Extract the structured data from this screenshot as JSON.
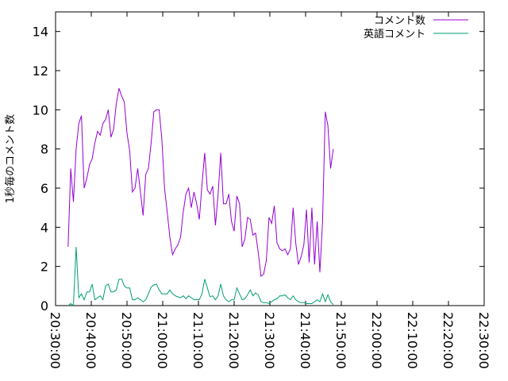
{
  "chart_data": {
    "type": "line",
    "title": "",
    "xlabel": "",
    "ylabel": "1秒毎のコメント数",
    "xlim": [
      "20:30:00",
      "22:30:00"
    ],
    "ylim": [
      0,
      15
    ],
    "x_ticks": [
      "20:30:00",
      "20:40:00",
      "20:50:00",
      "21:00:00",
      "21:10:00",
      "21:20:00",
      "21:30:00",
      "21:40:00",
      "21:50:00",
      "22:00:00",
      "22:10:00",
      "22:20:00",
      "22:30:00"
    ],
    "y_ticks": [
      0,
      2,
      4,
      6,
      8,
      10,
      12,
      14
    ],
    "grid": false,
    "legend_position": "top-right",
    "series": [
      {
        "name": "コメント数",
        "color": "#9400d3",
        "points": [
          [
            "20:33:30",
            3.0
          ],
          [
            "20:34:15",
            7.0
          ],
          [
            "20:35:00",
            5.3
          ],
          [
            "20:35:45",
            8.0
          ],
          [
            "20:36:30",
            9.3
          ],
          [
            "20:37:15",
            9.7
          ],
          [
            "20:38:00",
            6.0
          ],
          [
            "20:38:45",
            6.5
          ],
          [
            "20:39:30",
            7.2
          ],
          [
            "20:40:15",
            7.5
          ],
          [
            "20:41:00",
            8.3
          ],
          [
            "20:41:45",
            8.9
          ],
          [
            "20:42:30",
            8.7
          ],
          [
            "20:43:15",
            9.3
          ],
          [
            "20:44:00",
            9.5
          ],
          [
            "20:44:45",
            10.0
          ],
          [
            "20:45:30",
            8.6
          ],
          [
            "20:46:15",
            9.0
          ],
          [
            "20:47:00",
            10.3
          ],
          [
            "20:47:45",
            11.1
          ],
          [
            "20:48:30",
            10.7
          ],
          [
            "20:49:15",
            10.4
          ],
          [
            "20:50:00",
            8.8
          ],
          [
            "20:50:45",
            7.9
          ],
          [
            "20:51:30",
            5.8
          ],
          [
            "20:52:15",
            6.0
          ],
          [
            "20:53:00",
            7.0
          ],
          [
            "20:53:45",
            5.8
          ],
          [
            "20:54:30",
            4.6
          ],
          [
            "20:55:15",
            6.7
          ],
          [
            "20:56:00",
            7.0
          ],
          [
            "20:56:45",
            8.3
          ],
          [
            "20:57:30",
            9.9
          ],
          [
            "20:58:15",
            10.0
          ],
          [
            "20:59:00",
            10.0
          ],
          [
            "20:59:45",
            8.5
          ],
          [
            "21:00:30",
            6.0
          ],
          [
            "21:01:15",
            4.8
          ],
          [
            "21:02:00",
            3.5
          ],
          [
            "21:02:45",
            2.6
          ],
          [
            "21:03:30",
            2.9
          ],
          [
            "21:04:15",
            3.1
          ],
          [
            "21:05:00",
            3.5
          ],
          [
            "21:05:45",
            4.8
          ],
          [
            "21:06:30",
            5.7
          ],
          [
            "21:07:15",
            6.0
          ],
          [
            "21:08:00",
            5.0
          ],
          [
            "21:08:45",
            5.8
          ],
          [
            "21:09:30",
            5.2
          ],
          [
            "21:10:15",
            4.4
          ],
          [
            "21:11:00",
            6.2
          ],
          [
            "21:11:45",
            7.8
          ],
          [
            "21:12:30",
            5.9
          ],
          [
            "21:13:15",
            5.7
          ],
          [
            "21:14:00",
            6.1
          ],
          [
            "21:14:45",
            4.1
          ],
          [
            "21:15:30",
            5.7
          ],
          [
            "21:16:15",
            7.8
          ],
          [
            "21:17:00",
            5.2
          ],
          [
            "21:17:45",
            5.2
          ],
          [
            "21:18:30",
            5.7
          ],
          [
            "21:19:15",
            4.3
          ],
          [
            "21:20:00",
            3.8
          ],
          [
            "21:20:45",
            5.6
          ],
          [
            "21:21:30",
            5.2
          ],
          [
            "21:22:15",
            3.0
          ],
          [
            "21:23:00",
            3.4
          ],
          [
            "21:23:45",
            4.5
          ],
          [
            "21:24:30",
            4.4
          ],
          [
            "21:25:15",
            3.6
          ],
          [
            "21:26:00",
            3.7
          ],
          [
            "21:26:45",
            2.7
          ],
          [
            "21:27:30",
            1.5
          ],
          [
            "21:28:15",
            1.6
          ],
          [
            "21:29:00",
            2.3
          ],
          [
            "21:29:45",
            4.5
          ],
          [
            "21:30:30",
            4.2
          ],
          [
            "21:31:15",
            5.1
          ],
          [
            "21:32:00",
            3.2
          ],
          [
            "21:32:45",
            2.9
          ],
          [
            "21:33:30",
            2.8
          ],
          [
            "21:34:15",
            2.9
          ],
          [
            "21:35:00",
            2.6
          ],
          [
            "21:35:45",
            2.9
          ],
          [
            "21:36:30",
            5.0
          ],
          [
            "21:37:15",
            3.2
          ],
          [
            "21:38:00",
            2.1
          ],
          [
            "21:38:45",
            2.5
          ],
          [
            "21:39:30",
            3.1
          ],
          [
            "21:40:15",
            4.9
          ],
          [
            "21:41:00",
            2.2
          ],
          [
            "21:41:45",
            5.0
          ],
          [
            "21:42:30",
            2.1
          ],
          [
            "21:43:15",
            4.3
          ],
          [
            "21:44:00",
            1.7
          ],
          [
            "21:44:45",
            4.3
          ],
          [
            "21:45:30",
            9.9
          ],
          [
            "21:46:15",
            9.2
          ],
          [
            "21:47:00",
            7.0
          ],
          [
            "21:47:45",
            8.0
          ]
        ]
      },
      {
        "name": "英語コメント",
        "color": "#009e73",
        "points": [
          [
            "20:33:30",
            0.0
          ],
          [
            "20:34:15",
            0.1
          ],
          [
            "20:35:00",
            0.0
          ],
          [
            "20:35:45",
            3.0
          ],
          [
            "20:36:30",
            0.4
          ],
          [
            "20:37:15",
            0.6
          ],
          [
            "20:38:00",
            0.3
          ],
          [
            "20:38:45",
            0.7
          ],
          [
            "20:39:30",
            0.7
          ],
          [
            "20:40:15",
            1.1
          ],
          [
            "20:41:00",
            0.3
          ],
          [
            "20:41:45",
            0.4
          ],
          [
            "20:42:30",
            0.5
          ],
          [
            "20:43:15",
            0.3
          ],
          [
            "20:44:00",
            1.0
          ],
          [
            "20:44:45",
            1.1
          ],
          [
            "20:45:30",
            0.7
          ],
          [
            "20:46:15",
            0.7
          ],
          [
            "20:47:00",
            0.8
          ],
          [
            "20:47:45",
            1.35
          ],
          [
            "20:48:30",
            1.35
          ],
          [
            "20:49:15",
            1.0
          ],
          [
            "20:50:00",
            0.9
          ],
          [
            "20:50:45",
            0.9
          ],
          [
            "20:51:30",
            0.3
          ],
          [
            "20:52:15",
            0.3
          ],
          [
            "20:53:00",
            0.4
          ],
          [
            "20:53:45",
            0.3
          ],
          [
            "20:54:30",
            0.2
          ],
          [
            "20:55:15",
            0.3
          ],
          [
            "20:56:00",
            0.6
          ],
          [
            "20:56:45",
            0.95
          ],
          [
            "20:57:30",
            1.05
          ],
          [
            "20:58:15",
            1.1
          ],
          [
            "20:59:00",
            0.8
          ],
          [
            "20:59:45",
            0.6
          ],
          [
            "21:00:30",
            0.6
          ],
          [
            "21:01:15",
            0.6
          ],
          [
            "21:02:00",
            0.8
          ],
          [
            "21:02:45",
            0.6
          ],
          [
            "21:03:30",
            0.5
          ],
          [
            "21:04:15",
            0.45
          ],
          [
            "21:05:00",
            0.4
          ],
          [
            "21:05:45",
            0.5
          ],
          [
            "21:06:30",
            0.35
          ],
          [
            "21:07:15",
            0.5
          ],
          [
            "21:08:00",
            0.4
          ],
          [
            "21:08:45",
            0.3
          ],
          [
            "21:09:30",
            0.3
          ],
          [
            "21:10:15",
            0.3
          ],
          [
            "21:11:00",
            0.6
          ],
          [
            "21:11:45",
            1.35
          ],
          [
            "21:12:30",
            0.9
          ],
          [
            "21:13:15",
            0.45
          ],
          [
            "21:14:00",
            0.5
          ],
          [
            "21:14:45",
            0.3
          ],
          [
            "21:15:30",
            0.5
          ],
          [
            "21:16:15",
            1.1
          ],
          [
            "21:17:00",
            0.5
          ],
          [
            "21:17:45",
            0.3
          ],
          [
            "21:18:30",
            0.2
          ],
          [
            "21:19:15",
            0.3
          ],
          [
            "21:20:00",
            0.3
          ],
          [
            "21:20:45",
            0.9
          ],
          [
            "21:21:30",
            0.6
          ],
          [
            "21:22:15",
            0.3
          ],
          [
            "21:23:00",
            0.35
          ],
          [
            "21:23:45",
            0.55
          ],
          [
            "21:24:30",
            0.8
          ],
          [
            "21:25:15",
            0.5
          ],
          [
            "21:26:00",
            0.65
          ],
          [
            "21:26:45",
            0.55
          ],
          [
            "21:27:30",
            0.2
          ],
          [
            "21:28:15",
            0.15
          ],
          [
            "21:29:00",
            0.15
          ],
          [
            "21:29:45",
            0.1
          ],
          [
            "21:30:30",
            0.2
          ],
          [
            "21:31:15",
            0.3
          ],
          [
            "21:32:00",
            0.35
          ],
          [
            "21:32:45",
            0.5
          ],
          [
            "21:33:30",
            0.5
          ],
          [
            "21:34:15",
            0.55
          ],
          [
            "21:35:00",
            0.4
          ],
          [
            "21:35:45",
            0.3
          ],
          [
            "21:36:30",
            0.5
          ],
          [
            "21:37:15",
            0.3
          ],
          [
            "21:38:00",
            0.2
          ],
          [
            "21:38:45",
            0.15
          ],
          [
            "21:39:30",
            0.15
          ],
          [
            "21:40:15",
            0.1
          ],
          [
            "21:41:00",
            0.1
          ],
          [
            "21:41:45",
            0.1
          ],
          [
            "21:42:30",
            0.2
          ],
          [
            "21:43:15",
            0.3
          ],
          [
            "21:44:00",
            0.2
          ],
          [
            "21:44:45",
            0.6
          ],
          [
            "21:45:30",
            0.2
          ],
          [
            "21:46:15",
            0.55
          ],
          [
            "21:47:00",
            0.2
          ],
          [
            "21:47:45",
            0.05
          ]
        ]
      }
    ]
  }
}
